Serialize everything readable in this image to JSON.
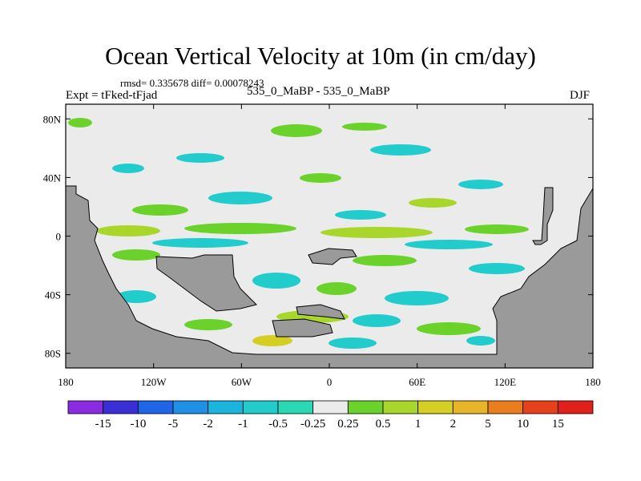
{
  "chart_data": {
    "type": "heatmap",
    "title": "Ocean Vertical Velocity at 10m (in cm/day)",
    "stats_label": "rmsd= 0.335678 diff= 0.00078243",
    "left_label": "Expt = tFked-tFjad",
    "center_label": "535_0_MaBP - 535_0_MaBP",
    "right_label": "DJF",
    "x_ticks": [
      "180",
      "120W",
      "60W",
      "0",
      "60E",
      "120E",
      "180"
    ],
    "x_values": [
      -180,
      -120,
      -60,
      0,
      60,
      120,
      180
    ],
    "y_ticks": [
      "80N",
      "40N",
      "0",
      "40S",
      "80S"
    ],
    "y_values": [
      80,
      40,
      0,
      -40,
      -80
    ],
    "xlim": [
      -180,
      180
    ],
    "ylim": [
      -90,
      90
    ],
    "colorbar_labels": [
      "-15",
      "-10",
      "-5",
      "-2",
      "-1",
      "-0.5",
      "-0.25",
      "0.25",
      "0.5",
      "1",
      "2",
      "5",
      "10",
      "15"
    ],
    "colorbar_colors": [
      "#8a2be2",
      "#3a2fd6",
      "#1f66e6",
      "#1e90e6",
      "#1ab4dc",
      "#22cccc",
      "#2ad9b4",
      "#ebebeb",
      "#6ad22a",
      "#a8d62a",
      "#d4cf22",
      "#e8b428",
      "#ea7d1e",
      "#e6411a",
      "#e0201a"
    ],
    "land_color": "#9a9a9a",
    "background_color": "#ebebeb"
  }
}
